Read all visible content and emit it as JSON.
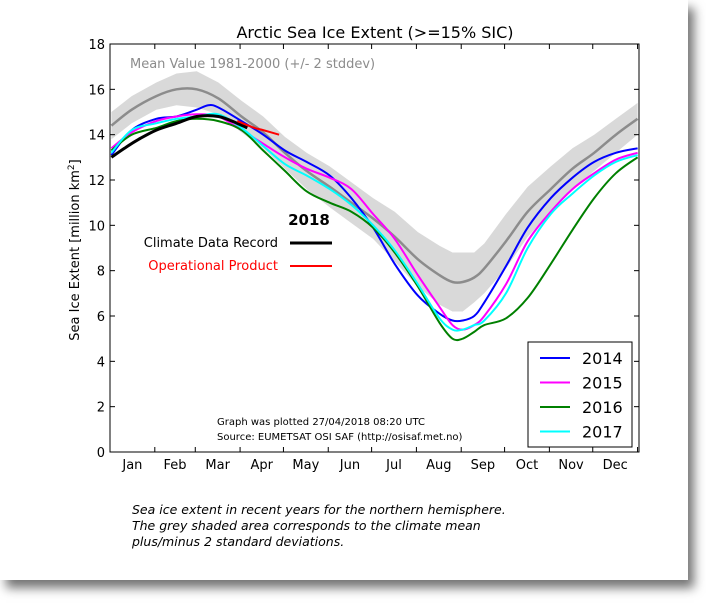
{
  "chart_data": {
    "type": "line",
    "title": "Arctic Sea Ice Extent (>=15% SIC)",
    "subtitle": "Mean Value 1981-2000 (+/- 2 stddev)",
    "ylabel": "Sea Ice Extent [million km²]",
    "ylabel_main": "Sea Ice Extent [million km",
    "ylabel_sup": "2",
    "ylabel_end": "]",
    "ylim": [
      0,
      18
    ],
    "yticks": [
      "0",
      "2",
      "4",
      "6",
      "8",
      "10",
      "12",
      "14",
      "16",
      "18"
    ],
    "xlim": [
      0,
      366
    ],
    "xticks": [
      "Jan",
      "Feb",
      "Mar",
      "Apr",
      "May",
      "Jun",
      "Jul",
      "Aug",
      "Sep",
      "Oct",
      "Nov",
      "Dec"
    ],
    "grid": false,
    "mean": {
      "name": "Mean Value 1981-2000",
      "color": "#8c8c8c",
      "band_color": "#d9d9d9",
      "x": [
        1,
        15,
        32,
        46,
        60,
        75,
        91,
        106,
        121,
        136,
        152,
        167,
        182,
        197,
        213,
        228,
        237,
        244,
        252,
        259,
        274,
        289,
        305,
        320,
        335,
        350,
        365
      ],
      "y": [
        14.4,
        15.1,
        15.7,
        16.0,
        16.0,
        15.6,
        14.8,
        14.1,
        13.2,
        12.4,
        11.7,
        11.0,
        10.3,
        9.5,
        8.5,
        7.8,
        7.5,
        7.5,
        7.7,
        8.1,
        9.3,
        10.6,
        11.6,
        12.5,
        13.2,
        14.0,
        14.7
      ],
      "lower": [
        13.8,
        14.5,
        15.1,
        15.3,
        15.2,
        14.9,
        14.1,
        13.4,
        12.5,
        11.6,
        10.8,
        10.1,
        9.4,
        8.4,
        7.3,
        6.5,
        6.2,
        6.2,
        6.6,
        7.0,
        8.1,
        9.5,
        10.6,
        11.6,
        12.4,
        13.2,
        14.0
      ],
      "upper": [
        15.0,
        15.7,
        16.3,
        16.7,
        16.8,
        16.3,
        15.5,
        14.8,
        13.9,
        13.2,
        12.6,
        11.9,
        11.2,
        10.6,
        9.7,
        9.1,
        8.8,
        8.8,
        8.8,
        9.2,
        10.5,
        11.7,
        12.6,
        13.4,
        14.0,
        14.7,
        15.4
      ]
    },
    "series": [
      {
        "name": "2014",
        "color": "#0000ff",
        "x": [
          1,
          15,
          32,
          46,
          60,
          68,
          75,
          91,
          106,
          121,
          136,
          152,
          167,
          182,
          197,
          213,
          228,
          237,
          244,
          252,
          259,
          274,
          289,
          305,
          320,
          335,
          350,
          365
        ],
        "y": [
          13.1,
          14.2,
          14.7,
          14.8,
          15.1,
          15.3,
          15.2,
          14.6,
          14.0,
          13.3,
          12.8,
          12.2,
          11.2,
          9.9,
          8.3,
          6.9,
          6.1,
          5.8,
          5.8,
          6.0,
          6.6,
          8.2,
          9.9,
          11.2,
          12.1,
          12.8,
          13.2,
          13.4
        ]
      },
      {
        "name": "2015",
        "color": "#ff00ff",
        "x": [
          1,
          15,
          32,
          46,
          60,
          75,
          91,
          106,
          121,
          136,
          152,
          167,
          182,
          197,
          213,
          228,
          237,
          244,
          252,
          259,
          274,
          289,
          305,
          320,
          335,
          350,
          365
        ],
        "y": [
          13.4,
          14.1,
          14.6,
          14.8,
          14.9,
          14.8,
          14.2,
          13.6,
          13.0,
          12.5,
          12.1,
          11.6,
          10.5,
          9.4,
          7.8,
          6.4,
          5.6,
          5.4,
          5.6,
          6.0,
          7.4,
          9.3,
          10.6,
          11.6,
          12.3,
          12.9,
          13.2
        ]
      },
      {
        "name": "2016",
        "color": "#008000",
        "x": [
          1,
          15,
          32,
          46,
          60,
          75,
          91,
          106,
          121,
          136,
          152,
          167,
          182,
          197,
          213,
          228,
          237,
          244,
          252,
          259,
          274,
          289,
          305,
          320,
          335,
          350,
          365
        ],
        "y": [
          13.3,
          14.0,
          14.3,
          14.6,
          14.7,
          14.6,
          14.2,
          13.3,
          12.4,
          11.5,
          11.0,
          10.6,
          9.9,
          8.8,
          7.3,
          5.7,
          5.0,
          5.0,
          5.3,
          5.6,
          5.9,
          6.8,
          8.3,
          9.8,
          11.2,
          12.3,
          13.0
        ]
      },
      {
        "name": "2017",
        "color": "#00ffff",
        "x": [
          1,
          15,
          32,
          46,
          60,
          75,
          91,
          106,
          121,
          136,
          152,
          167,
          182,
          197,
          213,
          228,
          237,
          244,
          252,
          259,
          274,
          289,
          305,
          320,
          335,
          350,
          365
        ],
        "y": [
          13.2,
          14.2,
          14.5,
          14.7,
          14.8,
          14.9,
          14.3,
          13.5,
          12.7,
          12.2,
          11.6,
          10.9,
          10.0,
          8.9,
          7.4,
          5.9,
          5.4,
          5.4,
          5.6,
          5.8,
          7.0,
          9.0,
          10.5,
          11.4,
          12.2,
          12.8,
          13.1
        ]
      }
    ],
    "record_2018": {
      "year": "2018",
      "cdr": {
        "name": "Climate Data Record",
        "color": "#000000",
        "x": [
          1,
          10,
          20,
          32,
          46,
          60,
          75,
          88,
          95
        ],
        "y": [
          13.0,
          13.4,
          13.8,
          14.2,
          14.5,
          14.8,
          14.8,
          14.5,
          14.3
        ]
      },
      "op": {
        "name": "Operational Product",
        "color": "#ff0000",
        "x": [
          88,
          100,
          106,
          117
        ],
        "y": [
          14.6,
          14.3,
          14.2,
          14.0
        ]
      }
    },
    "legend": "lower-right",
    "annotation_1": "Graph was plotted 27/04/2018 08:20 UTC",
    "annotation_2": "Source: EUMETSAT OSI SAF (http://osisaf.met.no)"
  },
  "caption": {
    "line1": "Sea ice extent in recent years for the northern hemisphere.",
    "line2": "The grey shaded area corresponds to the climate mean",
    "line3": "plus/minus 2 standard deviations."
  }
}
